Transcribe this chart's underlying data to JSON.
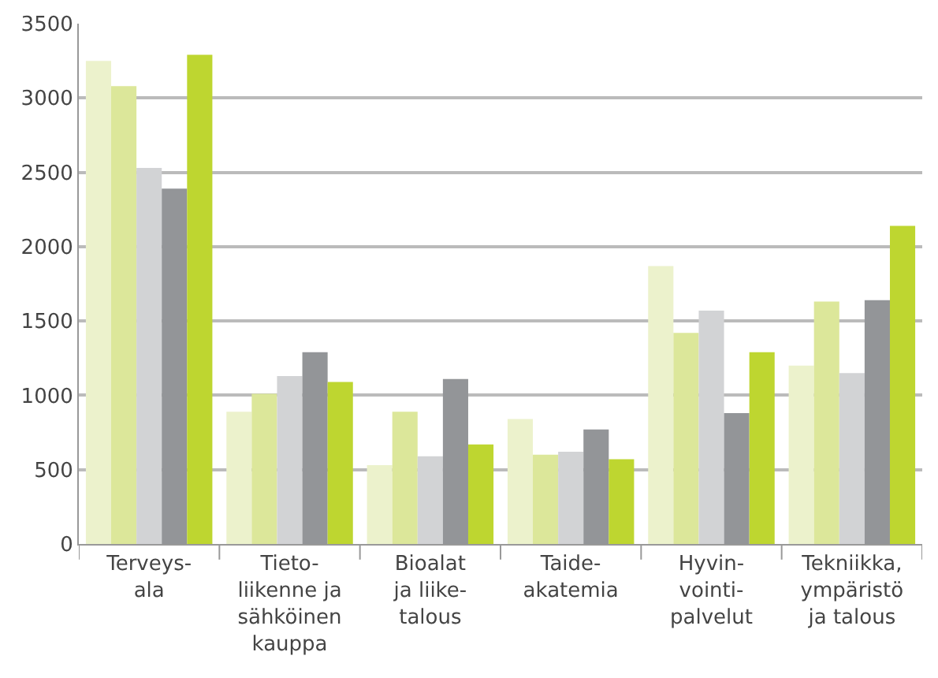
{
  "chart_data": {
    "type": "bar",
    "categories": [
      "Terveys-\nala",
      "Tieto-\nliikenne ja\nsähköinen\nkauppa",
      "Bioalat\nja liike-\ntalous",
      "Taide-\nakatemia",
      "Hyvin-\nvointi-\npalvelut",
      "Tekniikka,\nympäristö\nja talous"
    ],
    "series": [
      {
        "color": "#ecf2cc",
        "values": [
          3250,
          890,
          530,
          840,
          1870,
          1200
        ]
      },
      {
        "color": "#dce79a",
        "values": [
          3080,
          1010,
          890,
          600,
          1420,
          1630
        ]
      },
      {
        "color": "#d2d3d5",
        "values": [
          2530,
          1130,
          590,
          620,
          1570,
          1150
        ]
      },
      {
        "color": "#939598",
        "values": [
          2390,
          1290,
          1110,
          770,
          880,
          1640
        ]
      },
      {
        "color": "#bed630",
        "values": [
          3290,
          1090,
          670,
          570,
          1290,
          2140
        ]
      }
    ],
    "ylim": [
      0,
      3500
    ],
    "yticks": [
      0,
      500,
      1000,
      1500,
      2000,
      2500,
      3000,
      3500
    ],
    "grid": "y"
  }
}
